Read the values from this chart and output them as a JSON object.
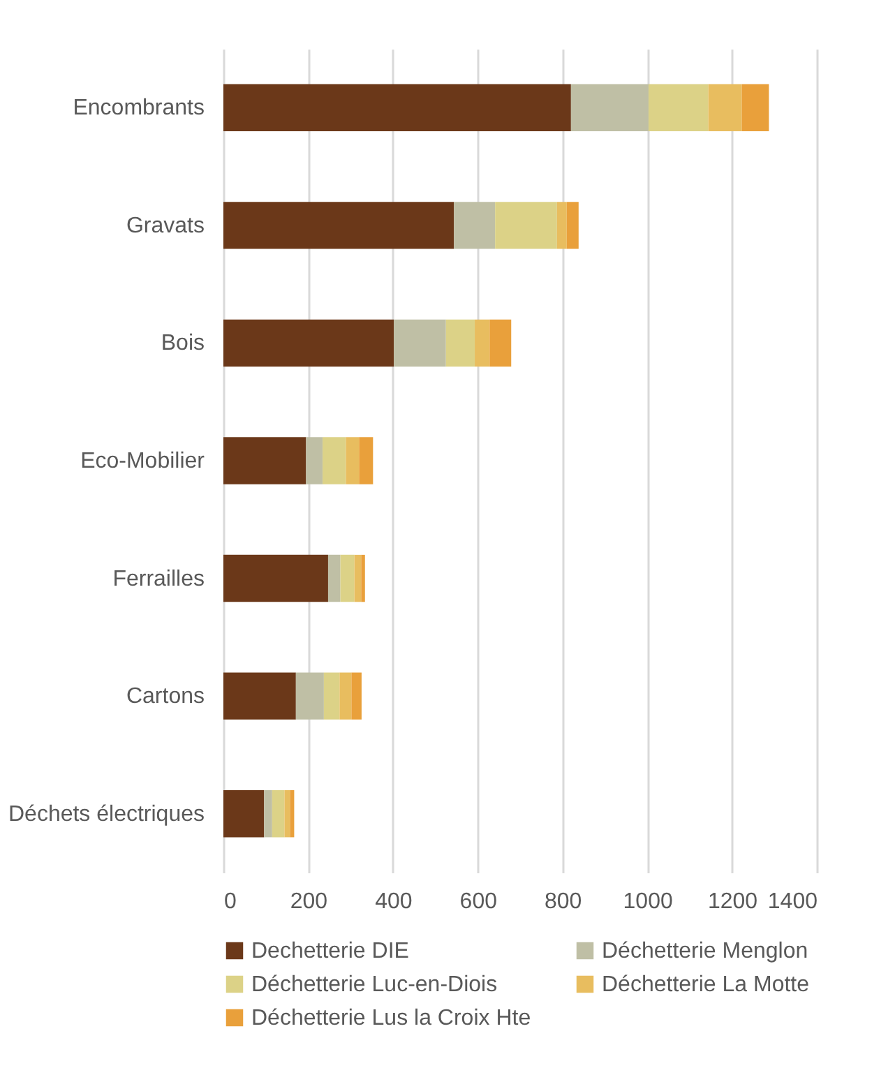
{
  "chart_data": {
    "type": "bar",
    "orientation": "horizontal",
    "stacked": true,
    "categories": [
      "Encombrants",
      "Gravats",
      "Bois",
      "Eco-Mobilier",
      "Ferrailles",
      "Cartons",
      "Déchets électriques"
    ],
    "series": [
      {
        "name": "Dechetterie DIE",
        "color": "#6b3819",
        "values": [
          820,
          544,
          402,
          195,
          247,
          171,
          96
        ]
      },
      {
        "name": "Déchetterie Menglon",
        "color": "#bfbfa5",
        "values": [
          183,
          97,
          123,
          39,
          29,
          66,
          19
        ]
      },
      {
        "name": "Déchetterie Luc-en-Diois",
        "color": "#dcd287",
        "values": [
          141,
          146,
          68,
          55,
          33,
          37,
          29
        ]
      },
      {
        "name": "Déchetterie La Motte",
        "color": "#e8bd5f",
        "values": [
          79,
          23,
          35,
          31,
          16,
          28,
          13
        ]
      },
      {
        "name": "Déchetterie Lus la Croix Hte",
        "color": "#e9a03b",
        "values": [
          64,
          28,
          51,
          33,
          9,
          24,
          10
        ]
      }
    ],
    "xlim": [
      0,
      1400
    ],
    "xticks": [
      0,
      200,
      400,
      600,
      800,
      1000,
      1200,
      1400
    ],
    "grid": "x",
    "legend": "bottom"
  }
}
